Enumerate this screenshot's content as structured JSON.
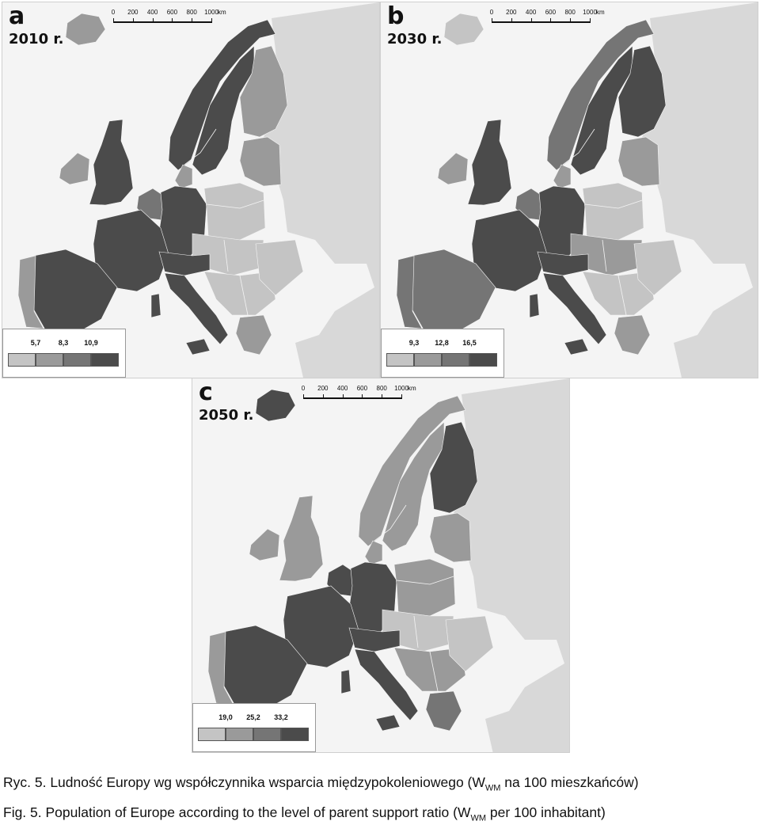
{
  "scale": {
    "ticks": [
      "0",
      "200",
      "400",
      "600",
      "800",
      "1000"
    ],
    "unit": "km"
  },
  "colors": {
    "class1": "#c4c4c4",
    "class2": "#9a9a9a",
    "class3": "#757575",
    "class4": "#4b4b4b",
    "sea": "#f4f4f4",
    "nonstudy": "#d8d8d8"
  },
  "panels": [
    {
      "letter": "a",
      "year": "2010 r.",
      "legend_breaks": [
        "5,7",
        "8,3",
        "10,9"
      ]
    },
    {
      "letter": "b",
      "year": "2030 r.",
      "legend_breaks": [
        "9,3",
        "12,8",
        "16,5"
      ]
    },
    {
      "letter": "c",
      "year": "2050 r.",
      "legend_breaks": [
        "19,0",
        "25,2",
        "33,2"
      ]
    }
  ],
  "captions": {
    "pl_prefix": "Ryc. 5. Ludność Europy wg współczynnika wsparcia międzypokoleniowego (W",
    "pl_sub": "WM",
    "pl_suffix": " na 100 mieszkańców)",
    "en_prefix": "Fig. 5. Population of Europe  according to the level of parent support ratio (W",
    "en_sub": "WM",
    "en_suffix": " per 100 inhabitant)"
  }
}
